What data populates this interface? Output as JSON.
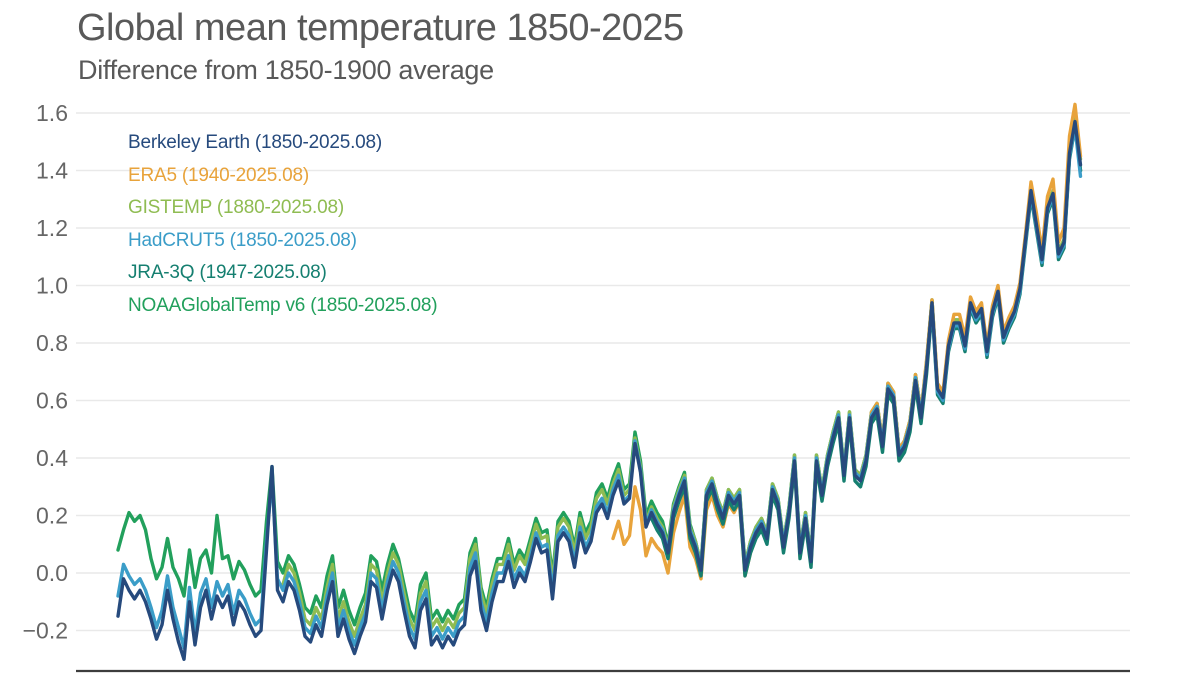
{
  "header": {
    "title": "Global mean temperature 1850-2025",
    "subtitle": "Difference from 1850-1900 average"
  },
  "colors": {
    "background": "#ffffff",
    "title_text": "#595959",
    "tick_text": "#666666",
    "gridline": "#e9e9e9",
    "axis_line": "#3d3d3d"
  },
  "chart_data": {
    "type": "line",
    "title": "Global mean temperature 1850-2025",
    "subtitle": "Difference from 1850-1900 average",
    "xlabel": "",
    "ylabel": "",
    "x_domain_years": [
      1850,
      2025.08
    ],
    "ylim": [
      -0.35,
      1.67
    ],
    "grid": true,
    "legend_position": "top-left",
    "yticks": [
      "1.6",
      "1.4",
      "1.2",
      "1.0",
      "0.8",
      "0.6",
      "0.4",
      "0.2",
      "0.0",
      "−0.2"
    ],
    "ytick_values": [
      1.6,
      1.4,
      1.2,
      1.0,
      0.8,
      0.6,
      0.4,
      0.2,
      0.0,
      -0.2
    ],
    "series": [
      {
        "name": "Berkeley Earth",
        "legend_label": "Berkeley Earth (1850-2025.08)",
        "color": "#264a7d",
        "start_year": 1850,
        "values": [
          -0.15,
          -0.02,
          -0.06,
          -0.09,
          -0.06,
          -0.1,
          -0.16,
          -0.23,
          -0.18,
          -0.06,
          -0.16,
          -0.24,
          -0.3,
          -0.1,
          -0.25,
          -0.12,
          -0.06,
          -0.16,
          -0.08,
          -0.12,
          -0.08,
          -0.18,
          -0.1,
          -0.13,
          -0.18,
          -0.22,
          -0.2,
          0.08,
          0.37,
          -0.06,
          -0.1,
          -0.03,
          -0.06,
          -0.13,
          -0.22,
          -0.24,
          -0.18,
          -0.22,
          -0.11,
          -0.03,
          -0.22,
          -0.16,
          -0.23,
          -0.28,
          -0.22,
          -0.17,
          -0.03,
          -0.05,
          -0.16,
          -0.06,
          0.01,
          -0.03,
          -0.13,
          -0.22,
          -0.26,
          -0.13,
          -0.09,
          -0.25,
          -0.22,
          -0.26,
          -0.22,
          -0.25,
          -0.2,
          -0.18,
          -0.01,
          0.04,
          -0.13,
          -0.2,
          -0.1,
          -0.03,
          -0.03,
          0.04,
          -0.05,
          0.0,
          -0.03,
          0.04,
          0.12,
          0.07,
          0.08,
          -0.09,
          0.11,
          0.14,
          0.11,
          0.02,
          0.14,
          0.07,
          0.11,
          0.21,
          0.24,
          0.19,
          0.27,
          0.32,
          0.24,
          0.26,
          0.45,
          0.35,
          0.16,
          0.21,
          0.17,
          0.14,
          0.07,
          0.21,
          0.27,
          0.32,
          0.14,
          0.09,
          0.01,
          0.27,
          0.31,
          0.24,
          0.19,
          0.27,
          0.24,
          0.27,
          0.01,
          0.09,
          0.14,
          0.17,
          0.12,
          0.29,
          0.24,
          0.09,
          0.21,
          0.39,
          0.07,
          0.19,
          0.04,
          0.39,
          0.27,
          0.39,
          0.47,
          0.54,
          0.34,
          0.54,
          0.34,
          0.32,
          0.39,
          0.54,
          0.57,
          0.44,
          0.64,
          0.61,
          0.41,
          0.44,
          0.51,
          0.67,
          0.54,
          0.71,
          0.94,
          0.64,
          0.61,
          0.79,
          0.87,
          0.87,
          0.79,
          0.94,
          0.89,
          0.92,
          0.77,
          0.91,
          0.98,
          0.82,
          0.87,
          0.91,
          0.99,
          1.16,
          1.33,
          1.21,
          1.09,
          1.27,
          1.32,
          1.11,
          1.15,
          1.46,
          1.57,
          1.42
        ]
      },
      {
        "name": "ERA5",
        "legend_label": "ERA5 (1940-2025.08)",
        "color": "#e8a33b",
        "start_year": 1940,
        "values": [
          0.12,
          0.18,
          0.1,
          0.13,
          0.3,
          0.22,
          0.06,
          0.12,
          0.09,
          0.07,
          0.0,
          0.14,
          0.21,
          0.27,
          0.09,
          0.05,
          -0.02,
          0.22,
          0.27,
          0.2,
          0.16,
          0.24,
          0.21,
          0.25,
          -0.01,
          0.07,
          0.13,
          0.16,
          0.11,
          0.28,
          0.23,
          0.08,
          0.2,
          0.38,
          0.06,
          0.18,
          0.03,
          0.38,
          0.26,
          0.39,
          0.47,
          0.54,
          0.34,
          0.55,
          0.35,
          0.33,
          0.4,
          0.56,
          0.59,
          0.46,
          0.66,
          0.63,
          0.43,
          0.46,
          0.53,
          0.69,
          0.56,
          0.74,
          0.95,
          0.66,
          0.63,
          0.81,
          0.9,
          0.9,
          0.82,
          0.96,
          0.91,
          0.94,
          0.79,
          0.93,
          1.0,
          0.84,
          0.89,
          0.93,
          1.01,
          1.18,
          1.36,
          1.25,
          1.12,
          1.31,
          1.37,
          1.15,
          1.2,
          1.52,
          1.63,
          1.45
        ]
      },
      {
        "name": "GISTEMP",
        "legend_label": "GISTEMP (1880-2025.08)",
        "color": "#8fbc52",
        "start_year": 1880,
        "values": [
          -0.04,
          0.03,
          0.0,
          -0.07,
          -0.16,
          -0.18,
          -0.12,
          -0.16,
          -0.05,
          0.03,
          -0.16,
          -0.1,
          -0.17,
          -0.22,
          -0.16,
          -0.11,
          0.03,
          0.01,
          -0.1,
          0.0,
          0.07,
          0.03,
          -0.07,
          -0.16,
          -0.2,
          -0.07,
          -0.03,
          -0.19,
          -0.16,
          -0.2,
          -0.16,
          -0.19,
          -0.14,
          -0.12,
          0.05,
          0.1,
          -0.07,
          -0.14,
          -0.04,
          0.03,
          0.03,
          0.1,
          0.01,
          0.06,
          0.03,
          0.1,
          0.17,
          0.12,
          0.13,
          -0.03,
          0.16,
          0.19,
          0.16,
          0.07,
          0.19,
          0.12,
          0.16,
          0.26,
          0.29,
          0.24,
          0.31,
          0.36,
          0.27,
          0.29,
          0.47,
          0.37,
          0.18,
          0.23,
          0.19,
          0.16,
          0.09,
          0.23,
          0.29,
          0.34,
          0.16,
          0.11,
          0.03,
          0.29,
          0.33,
          0.26,
          0.21,
          0.29,
          0.26,
          0.29,
          0.03,
          0.11,
          0.16,
          0.19,
          0.14,
          0.31,
          0.26,
          0.11,
          0.23,
          0.41,
          0.09,
          0.21,
          0.06,
          0.41,
          0.29,
          0.41,
          0.49,
          0.56,
          0.36,
          0.56,
          0.36,
          0.34,
          0.41,
          0.56,
          0.59,
          0.46,
          0.66,
          0.63,
          0.43,
          0.46,
          0.53,
          0.69,
          0.56,
          0.73,
          0.95,
          0.65,
          0.62,
          0.8,
          0.88,
          0.88,
          0.8,
          0.95,
          0.9,
          0.93,
          0.78,
          0.92,
          0.99,
          0.83,
          0.88,
          0.92,
          1.0,
          1.17,
          1.34,
          1.22,
          1.1,
          1.28,
          1.33,
          1.12,
          1.16,
          1.47,
          1.58,
          1.44
        ]
      },
      {
        "name": "HadCRUT5",
        "legend_label": "HadCRUT5 (1850-2025.08)",
        "color": "#3b9dc8",
        "start_year": 1850,
        "values": [
          -0.08,
          0.03,
          -0.01,
          -0.04,
          -0.02,
          -0.06,
          -0.12,
          -0.19,
          -0.13,
          -0.01,
          -0.12,
          -0.19,
          -0.26,
          -0.05,
          -0.21,
          -0.07,
          -0.02,
          -0.12,
          -0.03,
          -0.08,
          -0.04,
          -0.14,
          -0.06,
          -0.09,
          -0.14,
          -0.18,
          -0.16,
          0.11,
          0.33,
          -0.02,
          -0.06,
          0.0,
          -0.03,
          -0.1,
          -0.19,
          -0.21,
          -0.15,
          -0.19,
          -0.08,
          0.0,
          -0.19,
          -0.13,
          -0.2,
          -0.25,
          -0.19,
          -0.14,
          0.0,
          -0.02,
          -0.13,
          -0.03,
          0.04,
          0.0,
          -0.1,
          -0.19,
          -0.23,
          -0.1,
          -0.06,
          -0.22,
          -0.19,
          -0.23,
          -0.19,
          -0.22,
          -0.17,
          -0.15,
          0.02,
          0.07,
          -0.1,
          -0.17,
          -0.07,
          0.0,
          0.0,
          0.06,
          -0.02,
          0.02,
          -0.01,
          0.06,
          0.14,
          0.09,
          0.1,
          -0.06,
          0.13,
          0.16,
          0.13,
          0.04,
          0.16,
          0.09,
          0.13,
          0.23,
          0.26,
          0.21,
          0.29,
          0.34,
          0.25,
          0.27,
          0.46,
          0.36,
          0.17,
          0.22,
          0.18,
          0.15,
          0.08,
          0.22,
          0.28,
          0.33,
          0.15,
          0.1,
          0.02,
          0.28,
          0.32,
          0.25,
          0.2,
          0.28,
          0.25,
          0.28,
          0.02,
          0.1,
          0.15,
          0.18,
          0.13,
          0.3,
          0.25,
          0.1,
          0.22,
          0.4,
          0.08,
          0.2,
          0.05,
          0.4,
          0.28,
          0.4,
          0.48,
          0.55,
          0.35,
          0.55,
          0.35,
          0.33,
          0.4,
          0.55,
          0.58,
          0.45,
          0.65,
          0.62,
          0.42,
          0.45,
          0.52,
          0.68,
          0.55,
          0.72,
          0.93,
          0.63,
          0.6,
          0.78,
          0.86,
          0.86,
          0.78,
          0.93,
          0.88,
          0.91,
          0.76,
          0.9,
          0.97,
          0.81,
          0.86,
          0.9,
          0.98,
          1.15,
          1.32,
          1.2,
          1.08,
          1.26,
          1.31,
          1.1,
          1.14,
          1.45,
          1.55,
          1.38
        ]
      },
      {
        "name": "JRA-3Q",
        "legend_label": "JRA-3Q (1947-2025.08)",
        "color": "#157f70",
        "start_year": 1947,
        "values": [
          0.19,
          0.15,
          0.12,
          0.05,
          0.19,
          0.25,
          0.3,
          0.12,
          0.07,
          -0.01,
          0.25,
          0.29,
          0.22,
          0.17,
          0.25,
          0.22,
          0.25,
          -0.01,
          0.07,
          0.12,
          0.15,
          0.1,
          0.27,
          0.22,
          0.07,
          0.19,
          0.37,
          0.05,
          0.17,
          0.02,
          0.37,
          0.25,
          0.37,
          0.45,
          0.52,
          0.32,
          0.52,
          0.32,
          0.3,
          0.37,
          0.52,
          0.55,
          0.42,
          0.62,
          0.59,
          0.39,
          0.42,
          0.49,
          0.65,
          0.52,
          0.69,
          0.92,
          0.62,
          0.59,
          0.77,
          0.85,
          0.85,
          0.77,
          0.92,
          0.87,
          0.9,
          0.75,
          0.89,
          0.96,
          0.8,
          0.85,
          0.89,
          0.97,
          1.14,
          1.31,
          1.19,
          1.07,
          1.25,
          1.3,
          1.09,
          1.13,
          1.44,
          1.55,
          1.4
        ]
      },
      {
        "name": "NOAAGlobalTemp v6",
        "legend_label": "NOAAGlobalTemp v6 (1850-2025.08)",
        "color": "#22a05c",
        "start_year": 1850,
        "values": [
          0.08,
          0.15,
          0.21,
          0.18,
          0.2,
          0.15,
          0.05,
          -0.02,
          0.02,
          0.12,
          0.02,
          -0.02,
          -0.08,
          0.08,
          -0.05,
          0.05,
          0.08,
          0.0,
          0.2,
          0.05,
          0.06,
          -0.02,
          0.04,
          0.01,
          -0.04,
          -0.08,
          -0.06,
          0.18,
          0.37,
          0.04,
          0.0,
          0.06,
          0.03,
          -0.04,
          -0.12,
          -0.14,
          -0.08,
          -0.12,
          -0.01,
          0.06,
          -0.12,
          -0.06,
          -0.13,
          -0.18,
          -0.12,
          -0.07,
          0.06,
          0.04,
          -0.06,
          0.03,
          0.1,
          0.05,
          -0.04,
          -0.13,
          -0.17,
          -0.04,
          0.0,
          -0.16,
          -0.13,
          -0.17,
          -0.13,
          -0.16,
          -0.11,
          -0.09,
          0.07,
          0.12,
          -0.05,
          -0.12,
          -0.02,
          0.05,
          0.05,
          0.12,
          0.03,
          0.08,
          0.05,
          0.12,
          0.19,
          0.14,
          0.15,
          -0.01,
          0.18,
          0.21,
          0.18,
          0.09,
          0.21,
          0.14,
          0.18,
          0.28,
          0.31,
          0.26,
          0.33,
          0.38,
          0.29,
          0.31,
          0.49,
          0.39,
          0.2,
          0.25,
          0.21,
          0.18,
          0.1,
          0.24,
          0.3,
          0.35,
          0.17,
          0.11,
          0.03,
          0.29,
          0.33,
          0.26,
          0.21,
          0.29,
          0.26,
          0.29,
          0.03,
          0.11,
          0.16,
          0.19,
          0.14,
          0.31,
          0.26,
          0.11,
          0.23,
          0.41,
          0.09,
          0.21,
          0.06,
          0.41,
          0.29,
          0.41,
          0.49,
          0.56,
          0.36,
          0.56,
          0.36,
          0.34,
          0.41,
          0.56,
          0.59,
          0.46,
          0.66,
          0.63,
          0.43,
          0.46,
          0.53,
          0.69,
          0.56,
          0.73,
          0.95,
          0.65,
          0.62,
          0.8,
          0.88,
          0.88,
          0.8,
          0.95,
          0.9,
          0.93,
          0.78,
          0.92,
          0.99,
          0.83,
          0.88,
          0.92,
          1.0,
          1.17,
          1.33,
          1.21,
          1.09,
          1.27,
          1.32,
          1.11,
          1.15,
          1.45,
          1.56,
          1.4
        ]
      }
    ]
  }
}
